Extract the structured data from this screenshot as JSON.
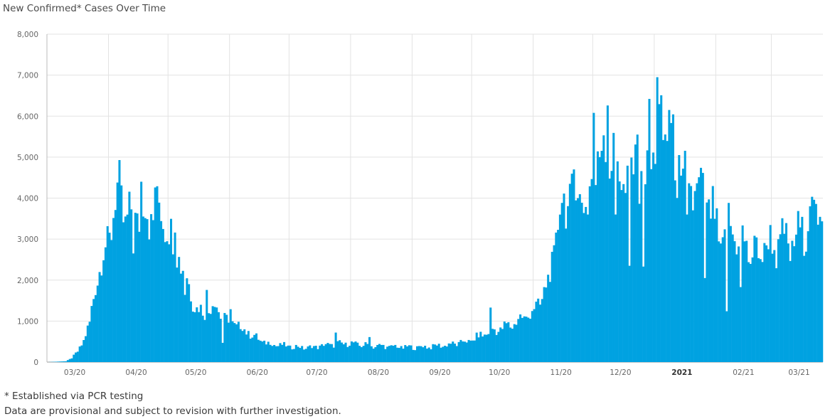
{
  "chart_data": {
    "type": "bar",
    "title": "New Confirmed* Cases Over Time",
    "x_axis": {
      "start_date": "2020-03-01",
      "end_date": "2021-03-26",
      "tick_labels": [
        {
          "label": "03/20",
          "date": "2020-03-15",
          "major": false
        },
        {
          "label": "04/20",
          "date": "2020-04-15",
          "major": false
        },
        {
          "label": "05/20",
          "date": "2020-05-15",
          "major": false
        },
        {
          "label": "06/20",
          "date": "2020-06-15",
          "major": false
        },
        {
          "label": "07/20",
          "date": "2020-07-15",
          "major": false
        },
        {
          "label": "08/20",
          "date": "2020-08-15",
          "major": false
        },
        {
          "label": "09/20",
          "date": "2020-09-15",
          "major": false
        },
        {
          "label": "10/20",
          "date": "2020-10-15",
          "major": false
        },
        {
          "label": "11/20",
          "date": "2020-11-15",
          "major": false
        },
        {
          "label": "12/20",
          "date": "2020-12-15",
          "major": false
        },
        {
          "label": "2021",
          "date": "2021-01-15",
          "major": true
        },
        {
          "label": "02/21",
          "date": "2021-02-15",
          "major": false
        },
        {
          "label": "03/21",
          "date": "2021-03-15",
          "major": false
        }
      ],
      "gridlines": [
        "2020-03-01",
        "2020-04-01",
        "2020-05-01",
        "2020-06-01",
        "2020-07-01",
        "2020-08-01",
        "2020-09-01",
        "2020-10-01",
        "2020-11-01",
        "2020-12-01",
        "2021-01-01",
        "2021-02-01",
        "2021-03-01"
      ]
    },
    "y_axis": {
      "min": 0,
      "max": 8000,
      "ticks": [
        0,
        1000,
        2000,
        3000,
        4000,
        5000,
        6000,
        7000,
        8000
      ],
      "tick_labels": [
        "0",
        "1,000",
        "2,000",
        "3,000",
        "4,000",
        "5,000",
        "6,000",
        "7,000",
        "8,000"
      ]
    },
    "grid": true,
    "legend": "none",
    "bar_color": "#00a2e1",
    "anchors": [
      [
        "2020-03-01",
        0
      ],
      [
        "2020-03-10",
        20
      ],
      [
        "2020-03-13",
        100
      ],
      [
        "2020-03-16",
        250
      ],
      [
        "2020-03-19",
        550
      ],
      [
        "2020-03-22",
        900
      ],
      [
        "2020-03-25",
        2000
      ],
      [
        "2020-03-28",
        2300
      ],
      [
        "2020-03-31",
        3000
      ],
      [
        "2020-04-03",
        3600
      ],
      [
        "2020-04-06",
        4200
      ],
      [
        "2020-04-09",
        3500
      ],
      [
        "2020-04-12",
        3500
      ],
      [
        "2020-04-15",
        3600
      ],
      [
        "2020-04-18",
        3700
      ],
      [
        "2020-04-21",
        3500
      ],
      [
        "2020-04-24",
        3700
      ],
      [
        "2020-04-27",
        3600
      ],
      [
        "2020-04-30",
        3500
      ],
      [
        "2020-05-03",
        2800
      ],
      [
        "2020-05-06",
        2700
      ],
      [
        "2020-05-09",
        2100
      ],
      [
        "2020-05-12",
        1700
      ],
      [
        "2020-05-15",
        1300
      ],
      [
        "2020-05-18",
        1200
      ],
      [
        "2020-05-21",
        1300
      ],
      [
        "2020-05-24",
        1400
      ],
      [
        "2020-05-27",
        1200
      ],
      [
        "2020-05-30",
        1000
      ],
      [
        "2020-06-03",
        950
      ],
      [
        "2020-06-07",
        800
      ],
      [
        "2020-06-11",
        700
      ],
      [
        "2020-06-15",
        550
      ],
      [
        "2020-06-20",
        450
      ],
      [
        "2020-06-25",
        420
      ],
      [
        "2020-07-01",
        380
      ],
      [
        "2020-07-10",
        350
      ],
      [
        "2020-07-20",
        420
      ],
      [
        "2020-07-30",
        460
      ],
      [
        "2020-08-10",
        400
      ],
      [
        "2020-08-20",
        380
      ],
      [
        "2020-08-31",
        360
      ],
      [
        "2020-09-10",
        380
      ],
      [
        "2020-09-20",
        430
      ],
      [
        "2020-09-30",
        520
      ],
      [
        "2020-10-07",
        700
      ],
      [
        "2020-10-14",
        800
      ],
      [
        "2020-10-20",
        900
      ],
      [
        "2020-10-27",
        1100
      ],
      [
        "2020-11-01",
        1250
      ],
      [
        "2020-11-04",
        1500
      ],
      [
        "2020-11-08",
        1900
      ],
      [
        "2020-11-11",
        2700
      ],
      [
        "2020-11-14",
        3700
      ],
      [
        "2020-11-18",
        4000
      ],
      [
        "2020-11-22",
        4200
      ],
      [
        "2020-11-26",
        4000
      ],
      [
        "2020-11-30",
        4300
      ],
      [
        "2020-12-03",
        5000
      ],
      [
        "2020-12-06",
        5300
      ],
      [
        "2020-12-10",
        5200
      ],
      [
        "2020-12-14",
        4600
      ],
      [
        "2020-12-18",
        4300
      ],
      [
        "2020-12-22",
        4800
      ],
      [
        "2020-12-26",
        4000
      ],
      [
        "2020-12-30",
        5000
      ],
      [
        "2021-01-03",
        5500
      ],
      [
        "2021-01-07",
        5900
      ],
      [
        "2021-01-10",
        5000
      ],
      [
        "2021-01-14",
        4300
      ],
      [
        "2021-01-18",
        4400
      ],
      [
        "2021-01-22",
        4100
      ],
      [
        "2021-01-26",
        4000
      ],
      [
        "2021-01-30",
        3600
      ],
      [
        "2021-02-03",
        2800
      ],
      [
        "2021-02-07",
        3300
      ],
      [
        "2021-02-11",
        3100
      ],
      [
        "2021-02-15",
        2900
      ],
      [
        "2021-02-19",
        2600
      ],
      [
        "2021-02-23",
        2700
      ],
      [
        "2021-02-27",
        2900
      ],
      [
        "2021-03-03",
        2800
      ],
      [
        "2021-03-07",
        3000
      ],
      [
        "2021-03-11",
        2800
      ],
      [
        "2021-03-15",
        3200
      ],
      [
        "2021-03-19",
        3400
      ],
      [
        "2021-03-23",
        3500
      ],
      [
        "2021-03-26",
        3400
      ]
    ],
    "noise": 0.16,
    "spikes": [
      [
        "2020-04-05",
        4380
      ],
      [
        "2020-04-17",
        4400
      ],
      [
        "2020-04-24",
        4260
      ],
      [
        "2020-05-04",
        3160
      ],
      [
        "2020-05-20",
        1760
      ],
      [
        "2020-06-01",
        1290
      ],
      [
        "2020-07-24",
        720
      ],
      [
        "2020-08-10",
        610
      ],
      [
        "2020-10-10",
        1330
      ],
      [
        "2020-11-21",
        4700
      ],
      [
        "2020-12-01",
        6080
      ],
      [
        "2020-12-08",
        6260
      ],
      [
        "2020-12-23",
        5550
      ],
      [
        "2020-12-29",
        6420
      ],
      [
        "2021-01-02",
        6950
      ],
      [
        "2021-01-08",
        6150
      ],
      [
        "2021-01-13",
        5050
      ],
      [
        "2021-02-06",
        1240
      ],
      [
        "2021-03-22",
        3960
      ],
      [
        "2021-03-20",
        3800
      ]
    ],
    "dips": [
      [
        "2020-04-13",
        2650
      ],
      [
        "2020-05-09",
        1640
      ],
      [
        "2020-05-28",
        470
      ],
      [
        "2020-11-28",
        3600
      ],
      [
        "2020-12-12",
        3600
      ],
      [
        "2020-12-19",
        2350
      ],
      [
        "2020-12-26",
        2330
      ],
      [
        "2021-01-17",
        3600
      ],
      [
        "2021-01-26",
        2050
      ],
      [
        "2021-02-13",
        1830
      ]
    ]
  },
  "footnotes": {
    "line1": "* Established via PCR testing",
    "line2": "Data are provisional and subject to revision with further investigation."
  }
}
